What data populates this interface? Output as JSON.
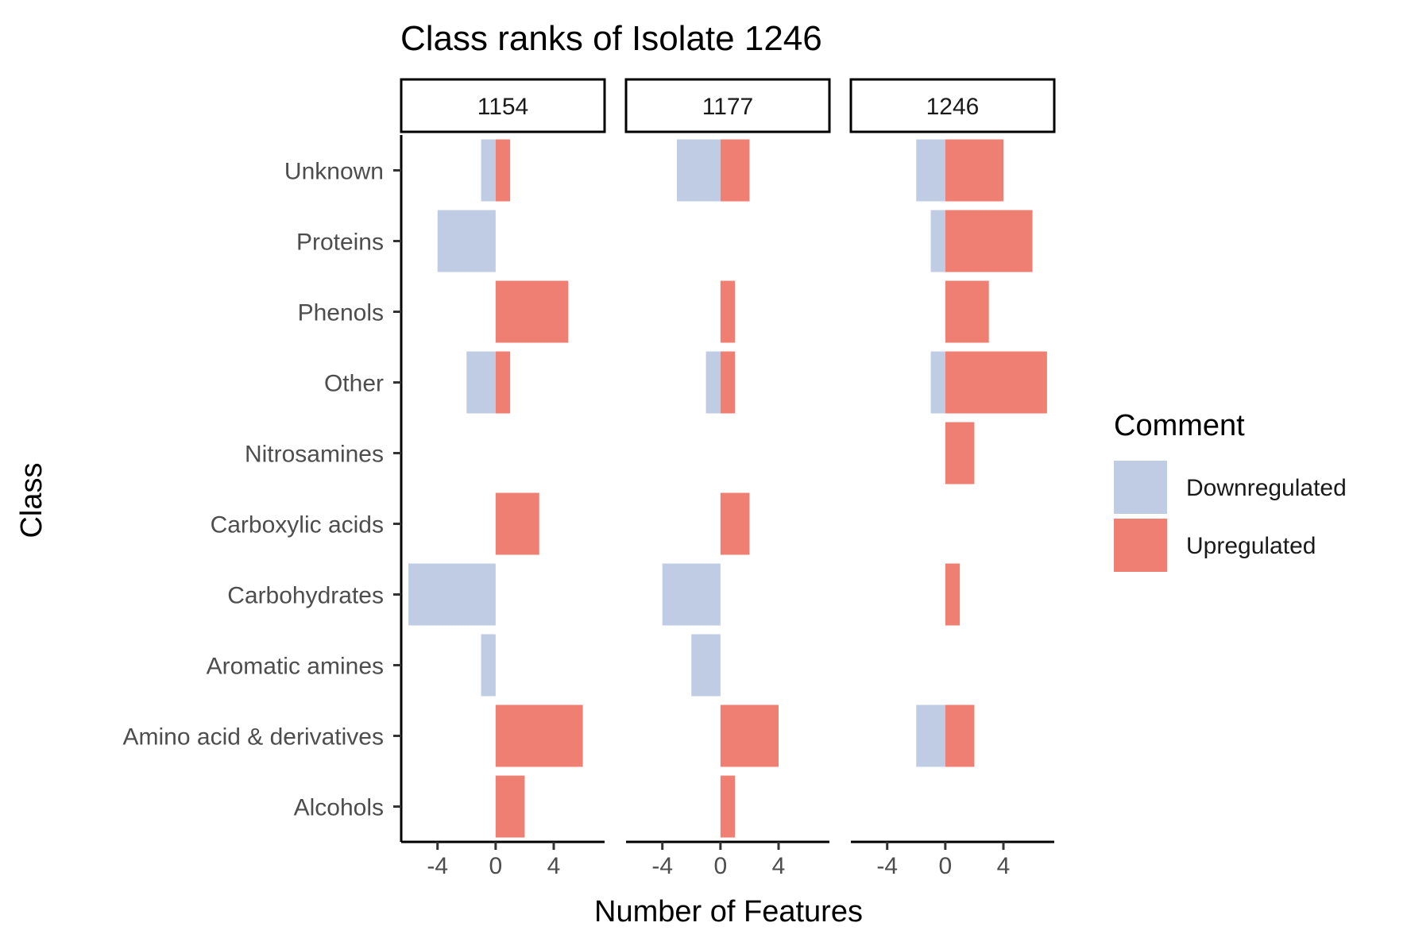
{
  "chart_data": {
    "type": "bar",
    "orientation": "horizontal",
    "title": "Class ranks of Isolate 1246",
    "xlabel": "Number of Features",
    "ylabel": "Class",
    "xlim": [
      -6.5,
      7.5
    ],
    "xticks": [
      -4,
      0,
      4
    ],
    "xtick_labels": [
      "-4",
      "0",
      "4"
    ],
    "grid": false,
    "legend": {
      "title": "Comment",
      "placement": "right",
      "entries": [
        "Downregulated",
        "Upregulated"
      ]
    },
    "colors": {
      "Downregulated": "#bfcce3",
      "Upregulated": "#ee7f72"
    },
    "categories": [
      "Unknown",
      "Proteins",
      "Phenols",
      "Other",
      "Nitrosamines",
      "Carboxylic acids",
      "Carbohydrates",
      "Aromatic amines",
      "Amino acid & derivatives",
      "Alcohols"
    ],
    "panels": [
      {
        "name": "1154",
        "series": [
          {
            "name": "Downregulated",
            "values": [
              -1,
              -4,
              0,
              -2,
              0,
              0,
              -6,
              -1,
              0,
              0
            ]
          },
          {
            "name": "Upregulated",
            "values": [
              1,
              0,
              5,
              1,
              0,
              3,
              0,
              0,
              6,
              2
            ]
          }
        ]
      },
      {
        "name": "1177",
        "series": [
          {
            "name": "Downregulated",
            "values": [
              -3,
              0,
              0,
              -1,
              0,
              0,
              -4,
              -2,
              0,
              0
            ]
          },
          {
            "name": "Upregulated",
            "values": [
              2,
              0,
              1,
              1,
              0,
              2,
              0,
              0,
              4,
              1
            ]
          }
        ]
      },
      {
        "name": "1246",
        "series": [
          {
            "name": "Downregulated",
            "values": [
              -2,
              -1,
              0,
              -1,
              0,
              0,
              0,
              0,
              -2,
              0
            ]
          },
          {
            "name": "Upregulated",
            "values": [
              4,
              6,
              3,
              7,
              2,
              0,
              1,
              0,
              2,
              0
            ]
          }
        ]
      }
    ]
  }
}
